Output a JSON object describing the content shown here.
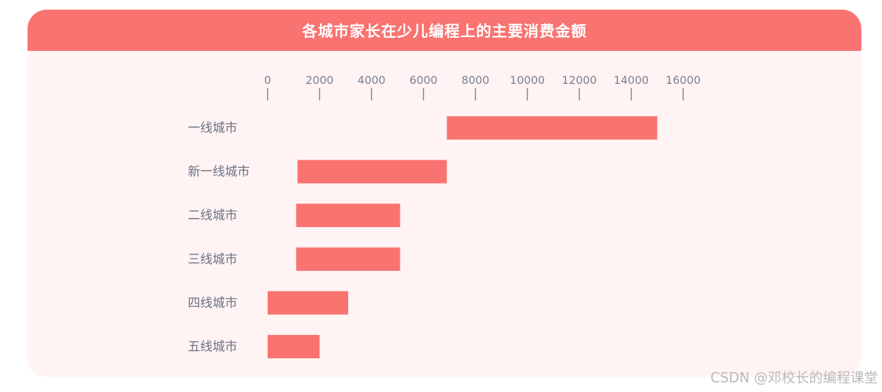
{
  "chart_data": {
    "type": "bar",
    "orientation": "horizontal",
    "floating": true,
    "title": "各城市家长在少儿编程上的主要消费金额",
    "categories": [
      "一线城市",
      "新一线城市",
      "二线城市",
      "三线城市",
      "四线城市",
      "五线城市"
    ],
    "ranges": [
      [
        6900,
        15000
      ],
      [
        1150,
        6900
      ],
      [
        1100,
        5100
      ],
      [
        1100,
        5100
      ],
      [
        0,
        3100
      ],
      [
        0,
        2000
      ]
    ],
    "xticks": [
      0,
      2000,
      4000,
      6000,
      8000,
      10000,
      12000,
      14000,
      16000
    ],
    "xlim": [
      0,
      16000
    ],
    "axis_position": "top",
    "grid": false,
    "legend": "none",
    "colors": {
      "bar": "#f97370",
      "header": "#f97370",
      "background": "#fff3f3",
      "axis": "#7a8194"
    }
  },
  "watermark": "CSDN @邓校长的编程课堂"
}
